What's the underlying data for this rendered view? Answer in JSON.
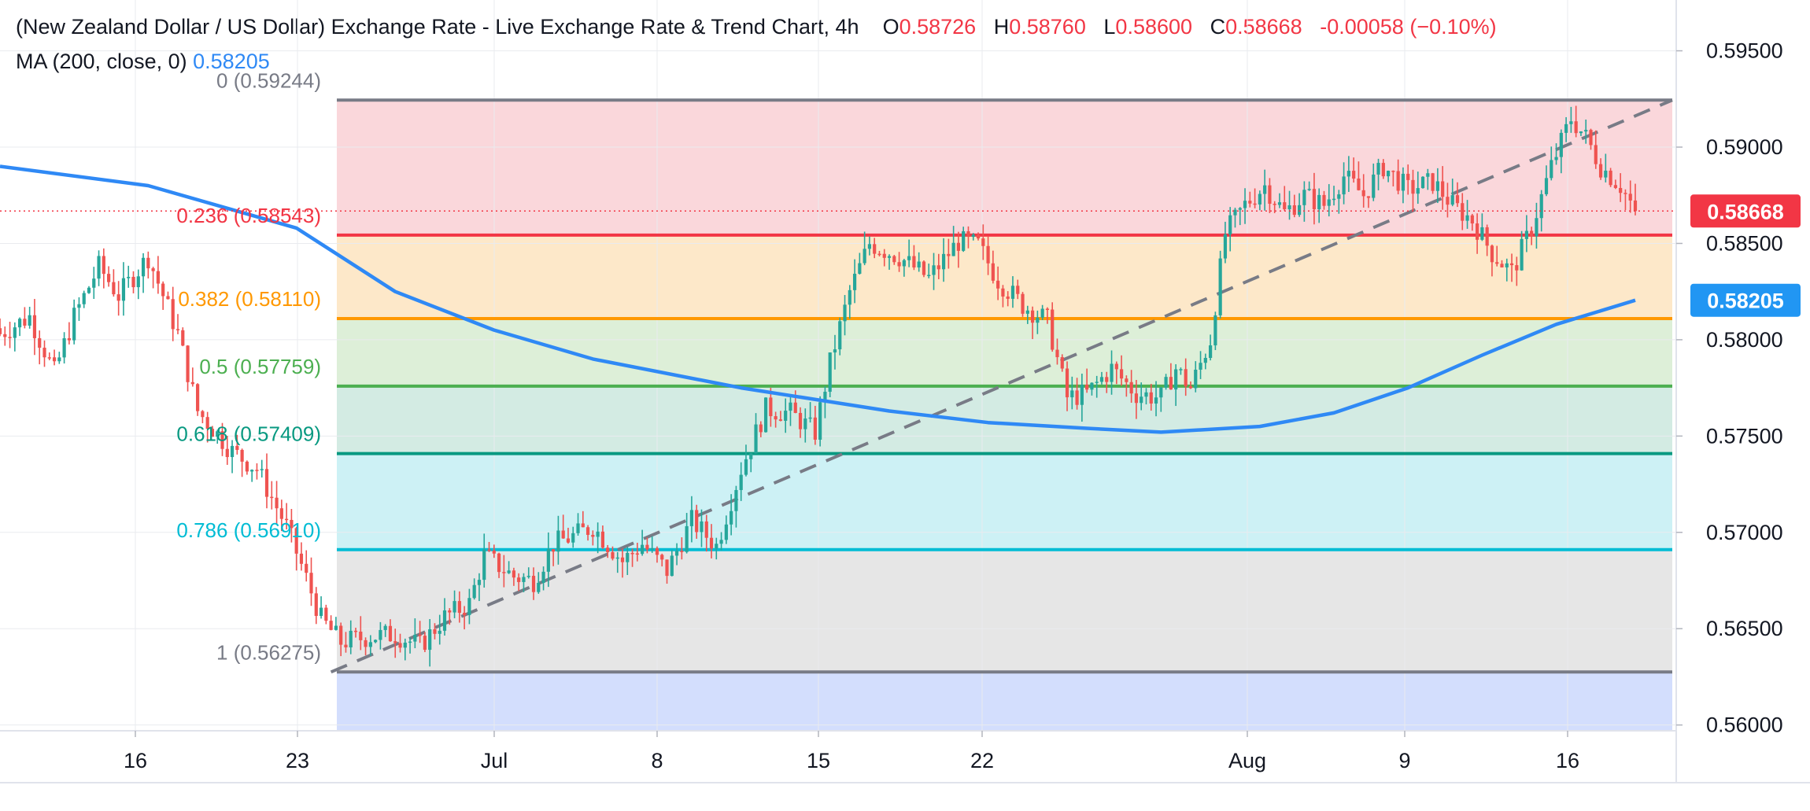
{
  "header": {
    "title": "(New Zealand Dollar / US Dollar) Exchange Rate - Live Exchange Rate & Trend Chart, 4h",
    "o_label": "O",
    "o_value": "0.58726",
    "h_label": "H",
    "h_value": "0.58760",
    "l_label": "L",
    "l_value": "0.58600",
    "c_label": "C",
    "c_value": "0.58668",
    "change": "-0.00058 (−0.10%)"
  },
  "indicator": {
    "label": "MA (200, close, 0)",
    "value": "0.58205"
  },
  "price_tags": {
    "last": "0.58668",
    "ma": "0.58205"
  },
  "colors": {
    "up": "#26a69a",
    "down": "#ef5350",
    "ma": "#2f89f5",
    "last_tag": "#f23645",
    "ma_tag": "#2196f3"
  },
  "chart_data": {
    "type": "candlestick",
    "symbol": "NZDUSD",
    "timeframe": "4h",
    "y_axis": {
      "min": 0.5597,
      "max": 0.59535,
      "ticks": [
        "0.59500",
        "0.59000",
        "0.58500",
        "0.58000",
        "0.57500",
        "0.57000",
        "0.56500",
        "0.56000"
      ]
    },
    "x_axis": {
      "ticks": [
        "16",
        "23",
        "Jul",
        "8",
        "15",
        "22",
        "Aug",
        "9",
        "16"
      ]
    },
    "fibonacci": [
      {
        "ratio": "0",
        "price": 0.59244,
        "label": "0 (0.59244)",
        "line": "#787b86",
        "fill": null
      },
      {
        "ratio": "0.236",
        "price": 0.58543,
        "label": "0.236 (0.58543)",
        "line": "#f23645",
        "fill": "#fad7db"
      },
      {
        "ratio": "0.382",
        "price": 0.5811,
        "label": "0.382 (0.58110)",
        "line": "#ff9800",
        "fill": "#fde8c9"
      },
      {
        "ratio": "0.5",
        "price": 0.57759,
        "label": "0.5 (0.57759)",
        "line": "#4caf50",
        "fill": "#ddefd8"
      },
      {
        "ratio": "0.618",
        "price": 0.57409,
        "label": "0.618 (0.57409)",
        "line": "#089981",
        "fill": "#d3ebe3"
      },
      {
        "ratio": "0.786",
        "price": 0.5691,
        "label": "0.786 (0.56910)",
        "line": "#00bcd4",
        "fill": "#cdf1f5"
      },
      {
        "ratio": "1",
        "price": 0.56275,
        "label": "1 (0.56275)",
        "line": "#787b86",
        "fill": "#e6e6e6"
      },
      {
        "ratio": "ext",
        "price": 0.5597,
        "label": "",
        "line": null,
        "fill": "#d3defd"
      }
    ],
    "last_price": 0.58668,
    "ma200_price": 0.58205,
    "close_path": [
      [
        0,
        0.5803
      ],
      [
        6,
        0.5812
      ],
      [
        11,
        0.5783
      ],
      [
        15,
        0.5812
      ],
      [
        20,
        0.5838
      ],
      [
        24,
        0.5823
      ],
      [
        30,
        0.5843
      ],
      [
        36,
        0.5803
      ],
      [
        40,
        0.5763
      ],
      [
        47,
        0.5742
      ],
      [
        52,
        0.5733
      ],
      [
        58,
        0.5703
      ],
      [
        61,
        0.5683
      ],
      [
        65,
        0.5655
      ],
      [
        69,
        0.5643
      ],
      [
        75,
        0.5646
      ],
      [
        80,
        0.5647
      ],
      [
        85,
        0.5641
      ],
      [
        90,
        0.5656
      ],
      [
        95,
        0.5663
      ],
      [
        98,
        0.5688
      ],
      [
        104,
        0.5677
      ],
      [
        108,
        0.5675
      ],
      [
        112,
        0.5694
      ],
      [
        116,
        0.5698
      ],
      [
        120,
        0.5703
      ],
      [
        126,
        0.5685
      ],
      [
        130,
        0.5694
      ],
      [
        135,
        0.568
      ],
      [
        140,
        0.5706
      ],
      [
        145,
        0.5693
      ],
      [
        150,
        0.5733
      ],
      [
        155,
        0.5764
      ],
      [
        160,
        0.5762
      ],
      [
        165,
        0.5752
      ],
      [
        168,
        0.5788
      ],
      [
        172,
        0.5825
      ],
      [
        176,
        0.585
      ],
      [
        182,
        0.5843
      ],
      [
        188,
        0.5832
      ],
      [
        194,
        0.5851
      ],
      [
        198,
        0.5849
      ],
      [
        202,
        0.5831
      ],
      [
        207,
        0.5818
      ],
      [
        212,
        0.581
      ],
      [
        216,
        0.577
      ],
      [
        220,
        0.5772
      ],
      [
        225,
        0.5785
      ],
      [
        230,
        0.5772
      ],
      [
        235,
        0.577
      ],
      [
        238,
        0.5785
      ],
      [
        241,
        0.5775
      ],
      [
        245,
        0.58
      ],
      [
        248,
        0.5855
      ],
      [
        252,
        0.587
      ],
      [
        256,
        0.588
      ],
      [
        260,
        0.5866
      ],
      [
        264,
        0.5875
      ],
      [
        268,
        0.587
      ],
      [
        272,
        0.5885
      ],
      [
        276,
        0.5875
      ],
      [
        280,
        0.589
      ],
      [
        285,
        0.5878
      ],
      [
        290,
        0.5882
      ],
      [
        294,
        0.587
      ],
      [
        298,
        0.5862
      ],
      [
        302,
        0.5845
      ],
      [
        306,
        0.5835
      ],
      [
        310,
        0.5858
      ],
      [
        314,
        0.589
      ],
      [
        318,
        0.5915
      ],
      [
        321,
        0.5905
      ],
      [
        324,
        0.589
      ],
      [
        328,
        0.588
      ],
      [
        331,
        0.58668
      ]
    ],
    "ma200_path": [
      [
        0,
        0.589
      ],
      [
        30,
        0.588
      ],
      [
        60,
        0.5858
      ],
      [
        80,
        0.5825
      ],
      [
        100,
        0.5805
      ],
      [
        120,
        0.579
      ],
      [
        150,
        0.5775
      ],
      [
        180,
        0.5763
      ],
      [
        200,
        0.5757
      ],
      [
        220,
        0.5754
      ],
      [
        235,
        0.5752
      ],
      [
        255,
        0.5755
      ],
      [
        270,
        0.5762
      ],
      [
        285,
        0.5775
      ],
      [
        300,
        0.5792
      ],
      [
        315,
        0.5808
      ],
      [
        331,
        0.58205
      ]
    ],
    "trendline": {
      "from": [
        67,
        0.56275
      ],
      "to": [
        331,
        0.59244
      ]
    }
  }
}
